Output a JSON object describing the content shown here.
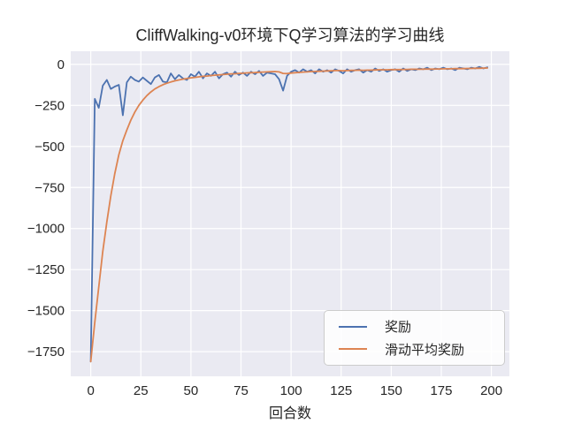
{
  "figure": {
    "title": "CliffWalking-v0环境下Q学习算法的学习曲线",
    "xlabel": "回合数",
    "background_color": "#ffffff",
    "axes_background_color": "#eaeaf2",
    "grid_color": "#ffffff",
    "text_color": "#262626"
  },
  "legend": {
    "entries": [
      {
        "label": "奖励",
        "color": "#4c72b0"
      },
      {
        "label": "滑动平均奖励",
        "color": "#dd8452"
      }
    ]
  },
  "chart_data": {
    "type": "line",
    "title": "CliffWalking-v0环境下Q学习算法的学习曲线",
    "xlabel": "回合数",
    "ylabel": "",
    "grid": true,
    "legend_position": "lower right",
    "xlim": [
      -10,
      209
    ],
    "ylim": [
      -1900,
      80
    ],
    "xticks": [
      0,
      25,
      50,
      75,
      100,
      125,
      150,
      175,
      200
    ],
    "xtick_labels": [
      "0",
      "25",
      "50",
      "75",
      "100",
      "125",
      "150",
      "175",
      "200"
    ],
    "yticks": [
      0,
      -250,
      -500,
      -750,
      -1000,
      -1250,
      -1500,
      -1750
    ],
    "ytick_labels": [
      "0",
      "−250",
      "−500",
      "−750",
      "−1000",
      "−1250",
      "−1500",
      "−1750"
    ],
    "x": [
      0,
      2,
      4,
      6,
      8,
      10,
      12,
      14,
      16,
      18,
      20,
      22,
      24,
      26,
      28,
      30,
      32,
      34,
      36,
      38,
      40,
      42,
      44,
      46,
      48,
      50,
      52,
      54,
      56,
      58,
      60,
      62,
      64,
      66,
      68,
      70,
      72,
      74,
      76,
      78,
      80,
      82,
      84,
      86,
      88,
      90,
      92,
      94,
      96,
      98,
      100,
      102,
      104,
      106,
      108,
      110,
      112,
      114,
      116,
      118,
      120,
      122,
      124,
      126,
      128,
      130,
      132,
      134,
      136,
      138,
      140,
      142,
      144,
      146,
      148,
      150,
      152,
      154,
      156,
      158,
      160,
      162,
      164,
      166,
      168,
      170,
      172,
      174,
      176,
      178,
      180,
      182,
      184,
      186,
      188,
      190,
      192,
      194,
      196,
      198
    ],
    "series": [
      {
        "name": "奖励",
        "color": "#4c72b0",
        "values": [
          -1810,
          -210,
          -265,
          -130,
          -95,
          -150,
          -135,
          -125,
          -310,
          -110,
          -75,
          -95,
          -105,
          -80,
          -100,
          -120,
          -80,
          -65,
          -105,
          -110,
          -55,
          -90,
          -65,
          -85,
          -95,
          -60,
          -75,
          -45,
          -85,
          -55,
          -70,
          -45,
          -85,
          -60,
          -50,
          -75,
          -45,
          -65,
          -50,
          -70,
          -45,
          -60,
          -40,
          -70,
          -50,
          -55,
          -60,
          -90,
          -160,
          -70,
          -45,
          -35,
          -50,
          -30,
          -45,
          -35,
          -55,
          -30,
          -45,
          -35,
          -50,
          -30,
          -40,
          -55,
          -30,
          -45,
          -35,
          -30,
          -50,
          -35,
          -45,
          -25,
          -40,
          -30,
          -45,
          -35,
          -30,
          -45,
          -25,
          -40,
          -30,
          -35,
          -25,
          -30,
          -20,
          -35,
          -25,
          -30,
          -20,
          -30,
          -25,
          -35,
          -20,
          -25,
          -30,
          -20,
          -25,
          -15,
          -25,
          -18
        ]
      },
      {
        "name": "滑动平均奖励",
        "color": "#dd8452",
        "values": [
          -1810,
          -1570,
          -1355,
          -1140,
          -960,
          -800,
          -665,
          -550,
          -465,
          -400,
          -340,
          -290,
          -250,
          -218,
          -190,
          -168,
          -150,
          -136,
          -124,
          -115,
          -107,
          -100,
          -95,
          -90,
          -86,
          -82,
          -79,
          -76,
          -73,
          -71,
          -68,
          -66,
          -64,
          -62,
          -60,
          -58,
          -57,
          -55,
          -54,
          -52,
          -51,
          -50,
          -48,
          -47,
          -46,
          -45,
          -44,
          -46,
          -55,
          -56,
          -53,
          -51,
          -49,
          -47,
          -46,
          -44,
          -43,
          -42,
          -41,
          -40,
          -39,
          -38,
          -38,
          -39,
          -38,
          -37,
          -36,
          -35,
          -36,
          -35,
          -35,
          -34,
          -33,
          -33,
          -33,
          -32,
          -32,
          -32,
          -31,
          -31,
          -30,
          -30,
          -30,
          -29,
          -28,
          -29,
          -28,
          -28,
          -27,
          -27,
          -27,
          -26,
          -26,
          -26,
          -25,
          -25,
          -24,
          -24,
          -23,
          -22
        ]
      }
    ]
  }
}
